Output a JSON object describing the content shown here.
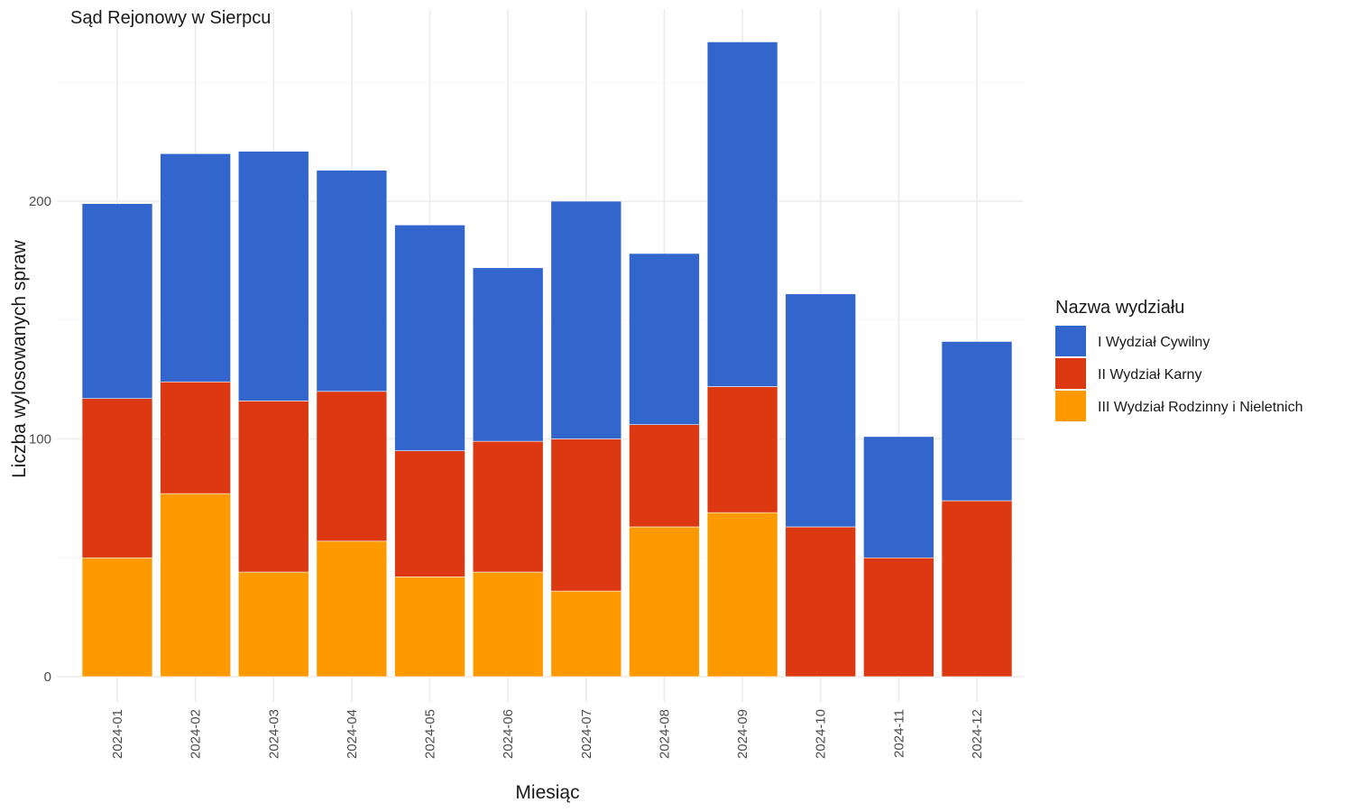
{
  "chart_data": {
    "type": "bar",
    "stacked": true,
    "title": "Sąd Rejonowy w Sierpcu",
    "xlabel": "Miesiąc",
    "ylabel": "Liczba wylosowanych spraw",
    "ylim": [
      0,
      270
    ],
    "y_ticks": [
      0,
      100,
      200
    ],
    "grid": true,
    "legend_position": "right",
    "legend_title": "Nazwa wydziału",
    "categories": [
      "2024-01",
      "2024-02",
      "2024-03",
      "2024-04",
      "2024-05",
      "2024-06",
      "2024-07",
      "2024-08",
      "2024-09",
      "2024-10",
      "2024-11",
      "2024-12"
    ],
    "series": [
      {
        "name": "I Wydział Cywilny",
        "color": "#3366cc",
        "values": [
          82,
          96,
          105,
          93,
          95,
          73,
          100,
          72,
          145,
          98,
          51,
          67
        ]
      },
      {
        "name": "II Wydział Karny",
        "color": "#dc3912",
        "values": [
          67,
          47,
          72,
          63,
          53,
          55,
          64,
          43,
          53,
          63,
          50,
          74
        ]
      },
      {
        "name": "III Wydział Rodzinny i Nieletnich",
        "color": "#ff9900",
        "values": [
          50,
          77,
          44,
          57,
          42,
          44,
          36,
          63,
          69,
          0,
          0,
          0
        ]
      }
    ]
  }
}
